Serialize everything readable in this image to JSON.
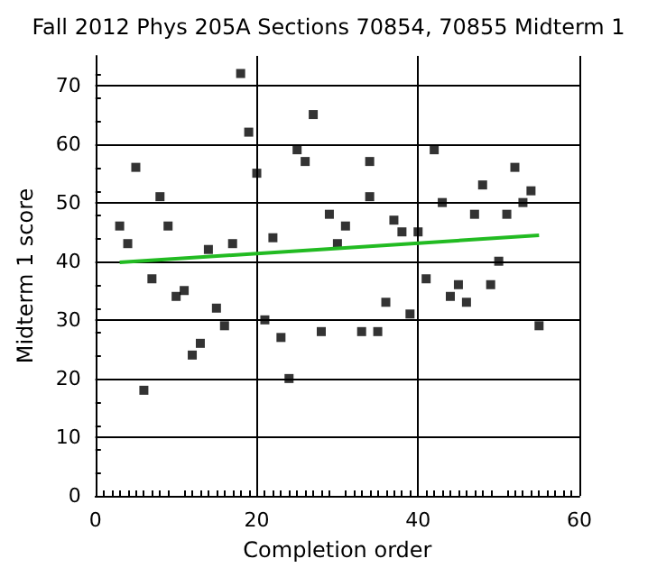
{
  "chart_data": {
    "type": "scatter",
    "title": "Fall 2012 Phys 205A Sections 70854, 70855 Midterm 1",
    "xlabel": "Completion order",
    "ylabel": "Midterm 1 score",
    "xlim": [
      0,
      60
    ],
    "xticks": [
      0,
      20,
      40,
      60
    ],
    "ylim": [
      0,
      75
    ],
    "yticks": [
      0,
      10,
      20,
      30,
      40,
      50,
      60,
      70
    ],
    "grid": true,
    "marker": "square",
    "series": [
      {
        "color": "#000000",
        "x": [
          3,
          4,
          5,
          6,
          7,
          8,
          9,
          10,
          11,
          12,
          13,
          14,
          15,
          16,
          17,
          18,
          19,
          20,
          21,
          22,
          23,
          24,
          25,
          26,
          27,
          28,
          29,
          30,
          31,
          33,
          35,
          34,
          34,
          36,
          37,
          38,
          39,
          40,
          41,
          42,
          43,
          44,
          45,
          46,
          47,
          48,
          49,
          50,
          51,
          52,
          53,
          54,
          55
        ],
        "values": [
          46,
          43,
          56,
          18,
          37,
          51,
          46,
          34,
          35,
          24,
          26,
          42,
          32,
          29,
          43,
          72,
          62,
          55,
          30,
          44,
          27,
          20,
          59,
          57,
          65,
          28,
          48,
          43,
          46,
          28,
          28,
          57,
          51,
          33,
          47,
          45,
          31,
          45,
          37,
          59,
          50,
          34,
          36,
          33,
          48,
          53,
          36,
          40,
          48,
          56,
          50,
          52,
          29
        ]
      },
      {
        "type": "line",
        "color": "#22bb22",
        "marker": "none",
        "x": [
          3,
          55
        ],
        "values": [
          39.8,
          44.4
        ]
      }
    ]
  }
}
